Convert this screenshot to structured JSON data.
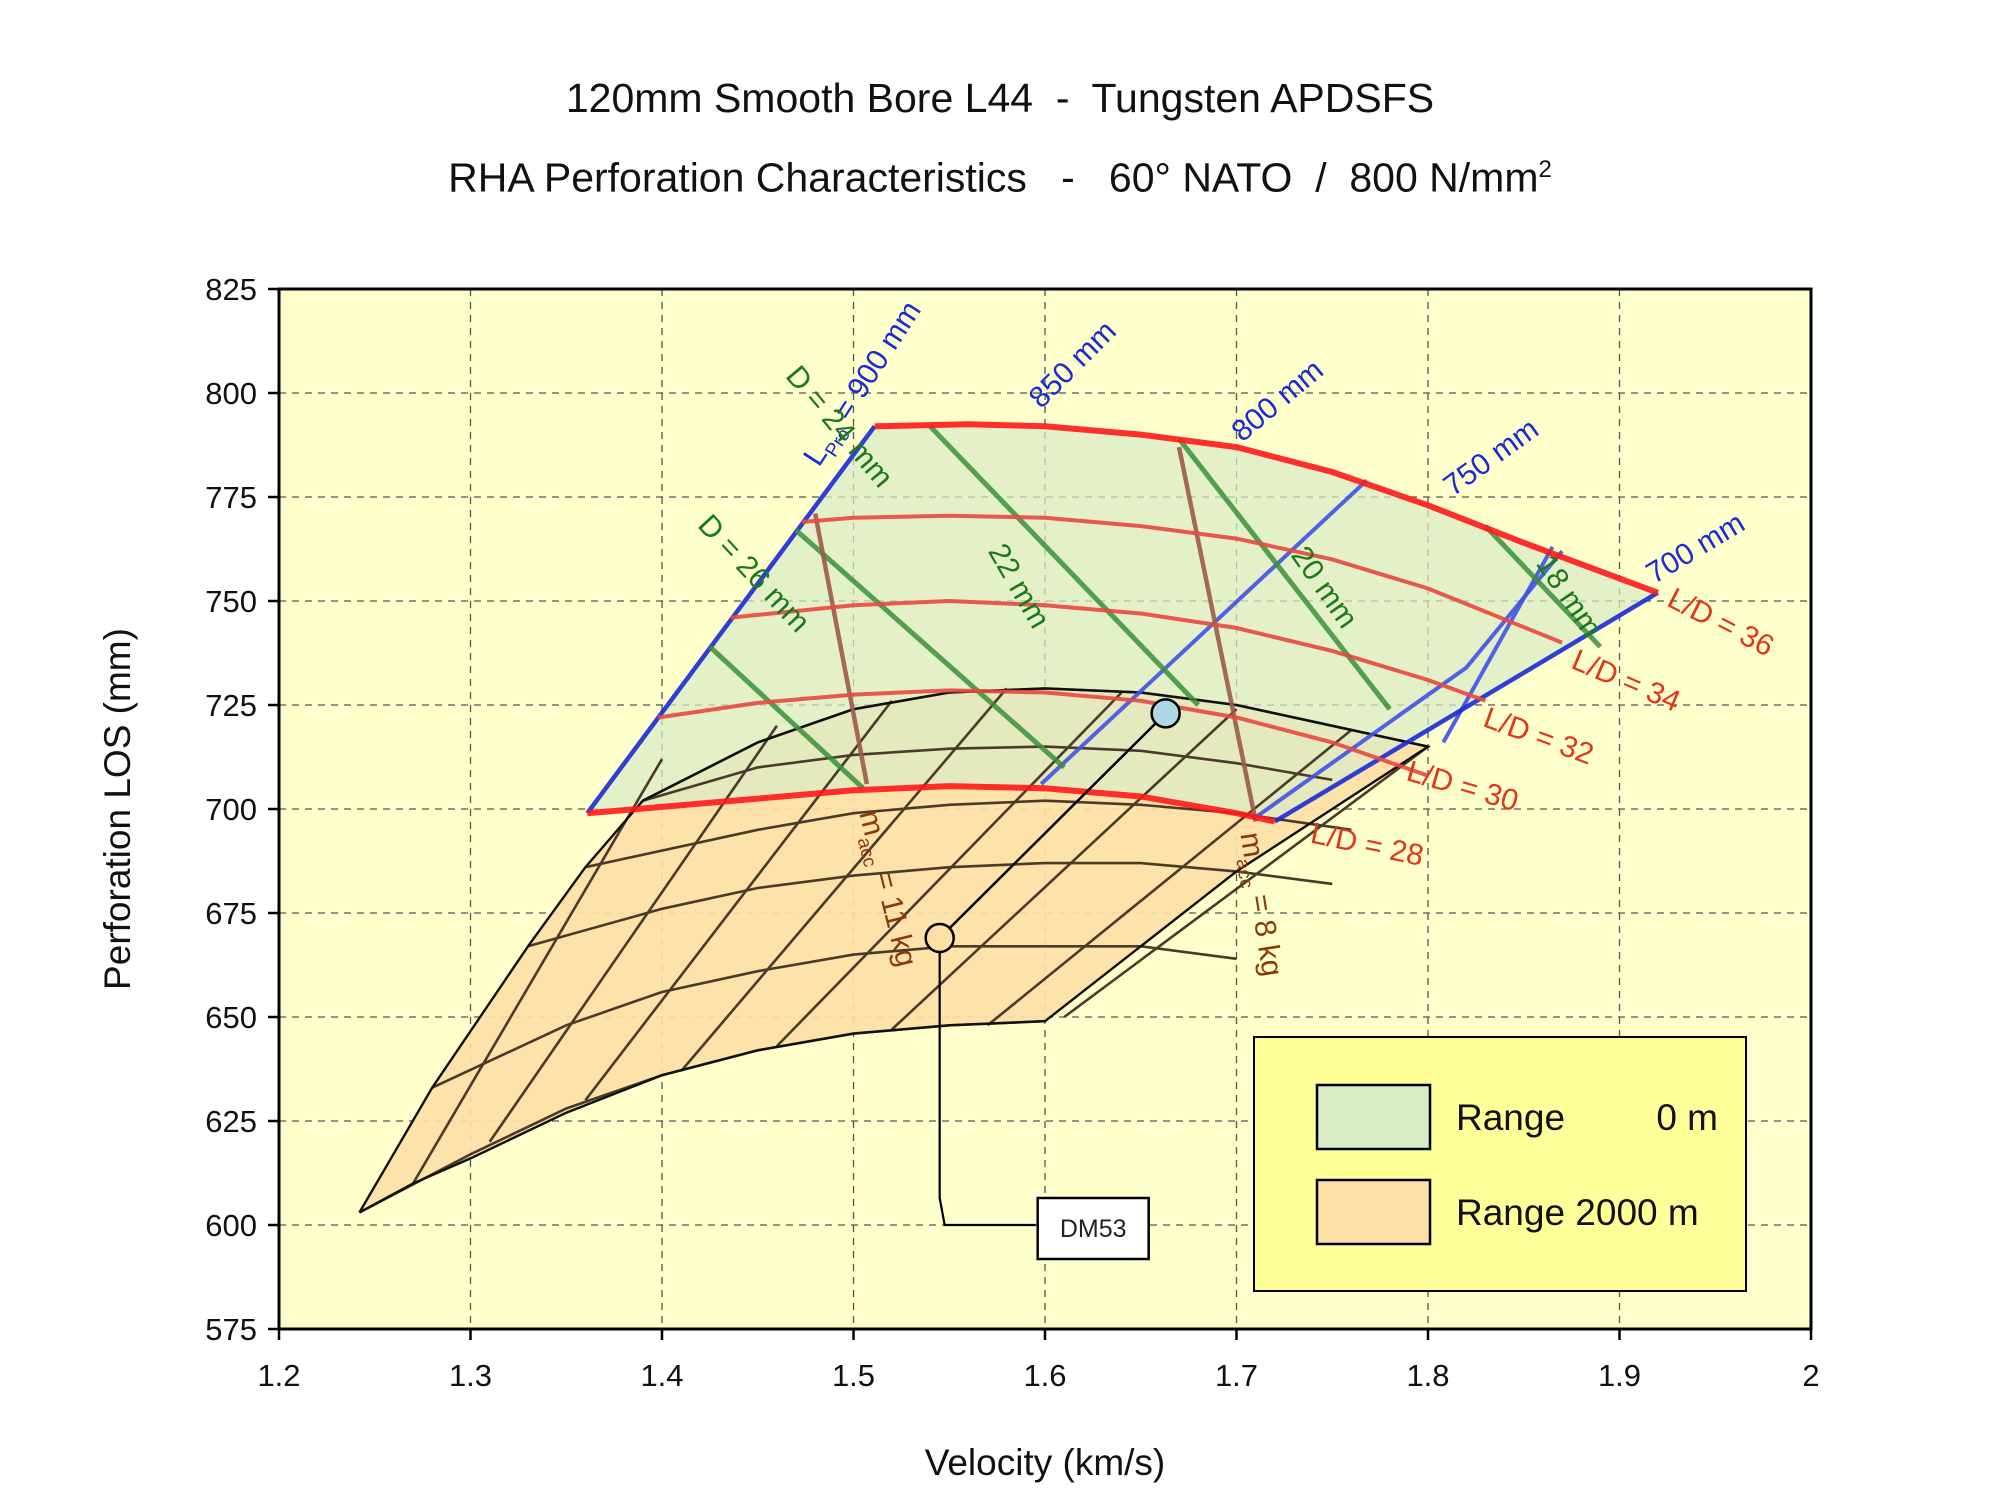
{
  "title": {
    "line1": "120mm Smooth Bore L44  -  Tungsten APDSFS",
    "line2_main": "RHA Perforation Characteristics   -   60° NATO  /  800 N/mm",
    "line2_sup": "2"
  },
  "colors": {
    "plot_bg": "#ffffcc",
    "range0_fill": "#d9ecc6",
    "range2000_fill": "#fde0a6",
    "blue": "#3f52e6",
    "blue_dark": "#1a2ad6",
    "red": "#e8483f",
    "red_bright": "#ff1a1a",
    "green": "#3a8f3a",
    "green_dark": "#1a7a1a",
    "brown": "#9a5a4a",
    "brown_dark": "#8b3a0a",
    "dark": "#4a3a2a"
  },
  "chart_data": {
    "type": "area",
    "xlabel": "Velocity (km/s)",
    "ylabel": "Perforation LOS (mm)",
    "xlim": [
      1.2,
      2.0
    ],
    "ylim": [
      575,
      825
    ],
    "xticks": [
      "1.2",
      "1.3",
      "1.4",
      "1.5",
      "1.6",
      "1.7",
      "1.8",
      "1.9",
      "2"
    ],
    "yticks": [
      "575",
      "600",
      "625",
      "650",
      "675",
      "700",
      "725",
      "750",
      "775",
      "800",
      "825"
    ],
    "grid": true,
    "legend": {
      "placement": "bottom-right",
      "entries": [
        {
          "label": "Range",
          "value": "0 m",
          "color": "#d9ecc6"
        },
        {
          "label": "Range 2000 m",
          "value": "",
          "color": "#fde0a6"
        }
      ]
    },
    "range_0m": {
      "boundary": [
        [
          1.361,
          699
        ],
        [
          1.511,
          792
        ],
        [
          1.56,
          792.5
        ],
        [
          1.6,
          792
        ],
        [
          1.65,
          790
        ],
        [
          1.7,
          787
        ],
        [
          1.75,
          781
        ],
        [
          1.8,
          773
        ],
        [
          1.85,
          764
        ],
        [
          1.92,
          752
        ],
        [
          1.72,
          697
        ],
        [
          1.7,
          699
        ],
        [
          1.65,
          703
        ],
        [
          1.6,
          705
        ],
        [
          1.55,
          706
        ],
        [
          1.5,
          704.5
        ],
        [
          1.45,
          702
        ],
        [
          1.4,
          700
        ],
        [
          1.361,
          699
        ]
      ],
      "ld_curves": [
        {
          "name": "L/D = 28",
          "points": [
            [
              1.361,
              699
            ],
            [
              1.4,
              700.5
            ],
            [
              1.45,
              702.5
            ],
            [
              1.5,
              704.5
            ],
            [
              1.55,
              705.5
            ],
            [
              1.6,
              705
            ],
            [
              1.65,
              703
            ],
            [
              1.7,
              699
            ],
            [
              1.72,
              697
            ]
          ]
        },
        {
          "name": "L/D = 30",
          "points": [
            [
              1.398,
              722
            ],
            [
              1.45,
              725.5
            ],
            [
              1.5,
              727.5
            ],
            [
              1.55,
              728.5
            ],
            [
              1.6,
              728
            ],
            [
              1.65,
              726
            ],
            [
              1.7,
              722
            ],
            [
              1.75,
              716
            ],
            [
              1.8,
              708
            ]
          ]
        },
        {
          "name": "L/D = 32",
          "points": [
            [
              1.436,
              746
            ],
            [
              1.5,
              749
            ],
            [
              1.55,
              750
            ],
            [
              1.6,
              749
            ],
            [
              1.65,
              747
            ],
            [
              1.7,
              743.5
            ],
            [
              1.75,
              738
            ],
            [
              1.8,
              731
            ],
            [
              1.83,
              726
            ]
          ]
        },
        {
          "name": "L/D = 34",
          "points": [
            [
              1.473,
              769
            ],
            [
              1.5,
              770
            ],
            [
              1.55,
              770.5
            ],
            [
              1.6,
              770
            ],
            [
              1.65,
              768
            ],
            [
              1.7,
              765
            ],
            [
              1.75,
              760
            ],
            [
              1.8,
              753
            ],
            [
              1.87,
              740
            ]
          ]
        },
        {
          "name": "L/D = 36",
          "points": [
            [
              1.511,
              792
            ],
            [
              1.56,
              792.5
            ],
            [
              1.6,
              792
            ],
            [
              1.65,
              790
            ],
            [
              1.7,
              787
            ],
            [
              1.75,
              781
            ],
            [
              1.8,
              773
            ],
            [
              1.85,
              764
            ],
            [
              1.92,
              752
            ]
          ]
        }
      ],
      "lpro_lines": [
        {
          "name": "L = 900 mm",
          "points": [
            [
              1.361,
              699
            ],
            [
              1.511,
              792
            ]
          ]
        },
        {
          "name": "850 mm",
          "points": [
            [
              1.598,
              706
            ],
            [
              1.768,
              779
            ]
          ]
        },
        {
          "name": "800 mm",
          "points": [
            [
              1.71,
              698
            ],
            [
              1.82,
              734
            ],
            [
              1.87,
              762
            ]
          ]
        },
        {
          "name": "750 mm",
          "points": [
            [
              1.808,
              716
            ],
            [
              1.865,
              763
            ]
          ]
        },
        {
          "name": "700 mm",
          "points": [
            [
              1.72,
              697
            ],
            [
              1.92,
              752
            ]
          ]
        }
      ],
      "diameter_lines": [
        {
          "name": "D = 26 mm",
          "points": [
            [
              1.425,
              739
            ],
            [
              1.505,
              705
            ]
          ]
        },
        {
          "name": "D = 24 mm",
          "points": [
            [
              1.47,
              767
            ],
            [
              1.61,
              710
            ]
          ]
        },
        {
          "name": "22 mm",
          "points": [
            [
              1.54,
              792
            ],
            [
              1.68,
              725
            ]
          ]
        },
        {
          "name": "20 mm",
          "points": [
            [
              1.67,
              789
            ],
            [
              1.78,
              724
            ]
          ]
        },
        {
          "name": "18 mm",
          "points": [
            [
              1.83,
              768
            ],
            [
              1.89,
              739
            ]
          ]
        }
      ],
      "mass_lines": [
        {
          "name": "m_acc = 11 kg",
          "points": [
            [
              1.48,
              771
            ],
            [
              1.507,
              706
            ]
          ]
        },
        {
          "name": "m_acc = 8 kg",
          "points": [
            [
              1.67,
              787
            ],
            [
              1.71,
              697
            ]
          ]
        }
      ]
    },
    "range_2000m": {
      "boundary": [
        [
          1.242,
          603
        ],
        [
          1.28,
          633
        ],
        [
          1.33,
          667
        ],
        [
          1.36,
          686
        ],
        [
          1.39,
          702
        ],
        [
          1.45,
          716
        ],
        [
          1.5,
          724
        ],
        [
          1.55,
          728
        ],
        [
          1.6,
          729
        ],
        [
          1.65,
          728
        ],
        [
          1.7,
          725
        ],
        [
          1.75,
          720
        ],
        [
          1.8,
          715
        ],
        [
          1.7,
          685
        ],
        [
          1.6,
          649
        ],
        [
          1.55,
          648
        ],
        [
          1.5,
          646
        ],
        [
          1.45,
          642
        ],
        [
          1.4,
          636
        ],
        [
          1.35,
          627
        ],
        [
          1.3,
          616
        ],
        [
          1.27,
          610
        ],
        [
          1.242,
          603
        ]
      ],
      "arc_curves": [
        {
          "points": [
            [
              1.242,
              603
            ],
            [
              1.3,
              617
            ],
            [
              1.35,
              628
            ],
            [
              1.4,
              636
            ],
            [
              1.45,
              642
            ],
            [
              1.5,
              646
            ],
            [
              1.55,
              648
            ],
            [
              1.6,
              649
            ]
          ]
        },
        {
          "points": [
            [
              1.28,
              633
            ],
            [
              1.35,
              648
            ],
            [
              1.4,
              656
            ],
            [
              1.45,
              661
            ],
            [
              1.5,
              665
            ],
            [
              1.55,
              667
            ],
            [
              1.6,
              667
            ],
            [
              1.65,
              667
            ],
            [
              1.7,
              664
            ]
          ]
        },
        {
          "points": [
            [
              1.33,
              667
            ],
            [
              1.4,
              676
            ],
            [
              1.45,
              681
            ],
            [
              1.5,
              684
            ],
            [
              1.55,
              686
            ],
            [
              1.6,
              687
            ],
            [
              1.65,
              687
            ],
            [
              1.7,
              685
            ],
            [
              1.75,
              682
            ]
          ]
        },
        {
          "points": [
            [
              1.36,
              686
            ],
            [
              1.45,
              695
            ],
            [
              1.5,
              699
            ],
            [
              1.55,
              701
            ],
            [
              1.6,
              702
            ],
            [
              1.65,
              701
            ],
            [
              1.7,
              699
            ],
            [
              1.76,
              695
            ]
          ]
        },
        {
          "points": [
            [
              1.39,
              702
            ],
            [
              1.45,
              710
            ],
            [
              1.5,
              713
            ],
            [
              1.55,
              714.5
            ],
            [
              1.6,
              715
            ],
            [
              1.65,
              714
            ],
            [
              1.7,
              711
            ],
            [
              1.75,
              707
            ]
          ]
        },
        {
          "points": [
            [
              1.39,
              702
            ],
            [
              1.45,
              716
            ],
            [
              1.5,
              724
            ],
            [
              1.55,
              728
            ],
            [
              1.6,
              729
            ],
            [
              1.65,
              728
            ],
            [
              1.7,
              725
            ],
            [
              1.75,
              720
            ],
            [
              1.8,
              715
            ]
          ]
        }
      ],
      "diag_lines": [
        {
          "points": [
            [
              1.27,
              610
            ],
            [
              1.4,
              712
            ]
          ]
        },
        {
          "points": [
            [
              1.31,
              620
            ],
            [
              1.46,
              720
            ]
          ]
        },
        {
          "points": [
            [
              1.36,
              630
            ],
            [
              1.52,
              726
            ]
          ]
        },
        {
          "points": [
            [
              1.41,
              637
            ],
            [
              1.58,
              729
            ]
          ]
        },
        {
          "points": [
            [
              1.46,
              643
            ],
            [
              1.64,
              728
            ]
          ]
        },
        {
          "points": [
            [
              1.52,
              647
            ],
            [
              1.7,
              724
            ]
          ]
        },
        {
          "points": [
            [
              1.57,
              648
            ],
            [
              1.76,
              719
            ]
          ]
        },
        {
          "points": [
            [
              1.61,
              650
            ],
            [
              1.8,
              715
            ]
          ]
        }
      ]
    },
    "dm53": {
      "label": "DM53",
      "range_0m": {
        "x": 1.663,
        "y": 723
      },
      "range_2000m": {
        "x": 1.545,
        "y": 669
      }
    },
    "annotations": [
      {
        "text": "L",
        "sub": "Pro",
        "tail": " = 900 mm",
        "x": 1.482,
        "y": 782,
        "angle": -57,
        "color": "#1a2ad6"
      },
      {
        "text": "850 mm",
        "x": 1.598,
        "y": 796,
        "angle": -45,
        "color": "#1a2ad6"
      },
      {
        "text": "800 mm",
        "x": 1.703,
        "y": 788,
        "angle": -40,
        "color": "#1a2ad6"
      },
      {
        "text": "750 mm",
        "x": 1.813,
        "y": 775,
        "angle": -36,
        "color": "#1a2ad6"
      },
      {
        "text": "700 mm",
        "x": 1.918,
        "y": 754,
        "angle": -31,
        "color": "#1a2ad6"
      },
      {
        "text": "D = 24 mm",
        "x": 1.464,
        "y": 804,
        "angle": 50,
        "color": "#1a7a1a"
      },
      {
        "text": "D = 26 mm",
        "x": 1.418,
        "y": 768,
        "angle": 47,
        "color": "#1a7a1a"
      },
      {
        "text": "22 mm",
        "x": 1.57,
        "y": 762,
        "angle": 60,
        "color": "#1a7a1a"
      },
      {
        "text": "20 mm",
        "x": 1.728,
        "y": 761,
        "angle": 55,
        "color": "#1a7a1a"
      },
      {
        "text": "18 mm",
        "x": 1.856,
        "y": 759,
        "angle": 56,
        "color": "#1a7a1a"
      },
      {
        "text": "L/D = 36",
        "x": 1.924,
        "y": 749,
        "angle": 27,
        "color": "#e2361a"
      },
      {
        "text": "L/D = 34",
        "x": 1.874,
        "y": 734,
        "angle": 23,
        "color": "#e2361a"
      },
      {
        "text": "L/D = 32",
        "x": 1.828,
        "y": 720,
        "angle": 20,
        "color": "#e2361a"
      },
      {
        "text": "L/D = 30",
        "x": 1.788,
        "y": 707,
        "angle": 16,
        "color": "#e2361a"
      },
      {
        "text": "L/D = 28",
        "x": 1.738,
        "y": 692,
        "angle": 12,
        "color": "#e2361a"
      },
      {
        "text": "m",
        "sub": "acc",
        "tail": " = 11 kg",
        "x": 1.503,
        "y": 699,
        "angle": 76,
        "color": "#8b3a0a"
      },
      {
        "text": "m",
        "sub": "acc",
        "tail": " = 8 kg",
        "x": 1.702,
        "y": 694,
        "angle": 81,
        "color": "#8b3a0a"
      }
    ]
  }
}
